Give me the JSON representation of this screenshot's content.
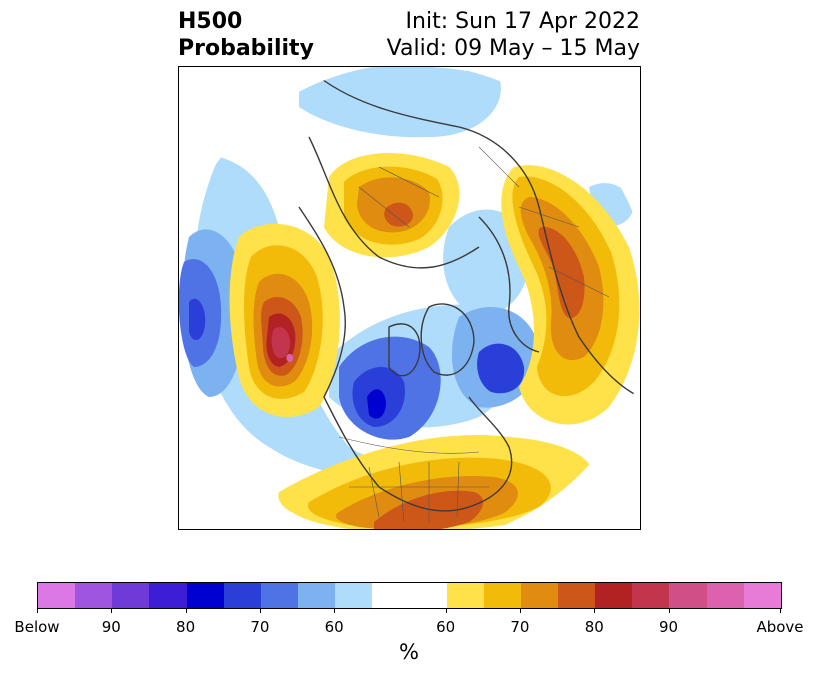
{
  "header": {
    "title_line1": "H500",
    "title_line2": "Probability",
    "init": "Init: Sun 17 Apr 2022",
    "valid": "Valid: 09 May – 15 May"
  },
  "colorbar": {
    "swatches": [
      {
        "name": "below-95",
        "color": "#dc78e6"
      },
      {
        "name": "below-90",
        "color": "#9f55e0"
      },
      {
        "name": "below-85",
        "color": "#6e3bd9"
      },
      {
        "name": "below-80",
        "color": "#3d1dd6"
      },
      {
        "name": "below-75",
        "color": "#0000d0"
      },
      {
        "name": "below-70",
        "color": "#2a3fd8"
      },
      {
        "name": "below-65",
        "color": "#4f73e4"
      },
      {
        "name": "below-60",
        "color": "#7db2f0"
      },
      {
        "name": "below-55",
        "color": "#aedcfa"
      },
      {
        "name": "neutral",
        "color": "#ffffff"
      },
      {
        "name": "above-55",
        "color": "#ffe14a"
      },
      {
        "name": "above-60",
        "color": "#f2bb0a"
      },
      {
        "name": "above-65",
        "color": "#e08c10"
      },
      {
        "name": "above-70",
        "color": "#cc5718"
      },
      {
        "name": "above-75",
        "color": "#b22222"
      },
      {
        "name": "above-80",
        "color": "#c2354d"
      },
      {
        "name": "above-85",
        "color": "#cf4f86"
      },
      {
        "name": "above-90",
        "color": "#dc62b0"
      },
      {
        "name": "above-95",
        "color": "#e87ad8"
      }
    ],
    "labels": [
      "Below",
      "90",
      "80",
      "70",
      "60",
      "60",
      "70",
      "80",
      "90",
      "Above"
    ],
    "unit": "%"
  }
}
